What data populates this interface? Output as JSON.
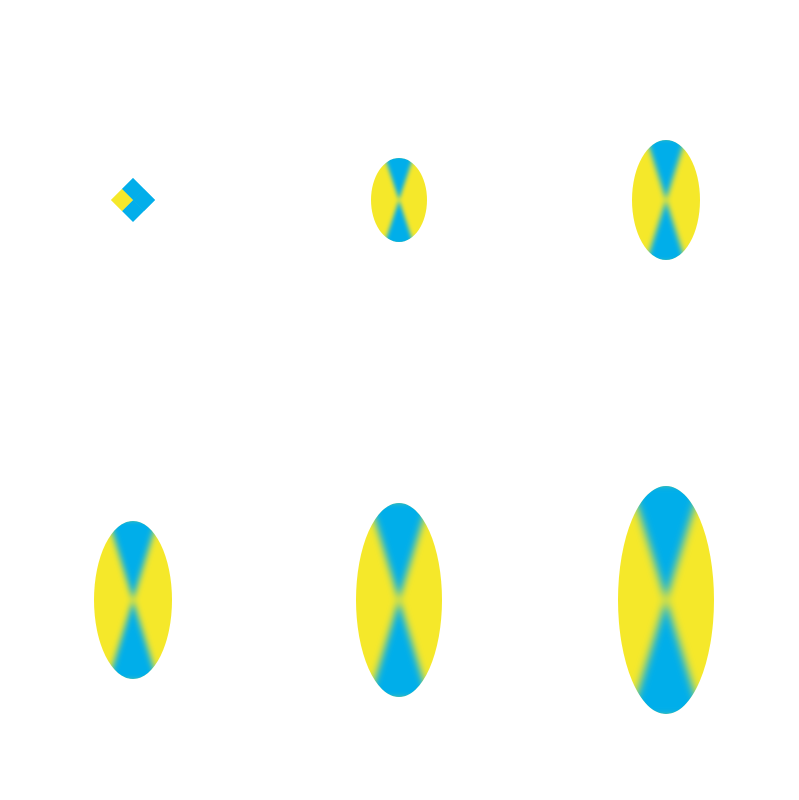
{
  "colors": {
    "background": "#ffffff",
    "yellow": "#f5e82a",
    "blue": "#03aeea"
  },
  "shapes": [
    {
      "id": "shape-1",
      "kind": "diamond"
    },
    {
      "id": "shape-2",
      "kind": "ellipse"
    },
    {
      "id": "shape-3",
      "kind": "ellipse"
    },
    {
      "id": "shape-4",
      "kind": "ellipse"
    },
    {
      "id": "shape-5",
      "kind": "ellipse"
    },
    {
      "id": "shape-6",
      "kind": "ellipse"
    }
  ]
}
